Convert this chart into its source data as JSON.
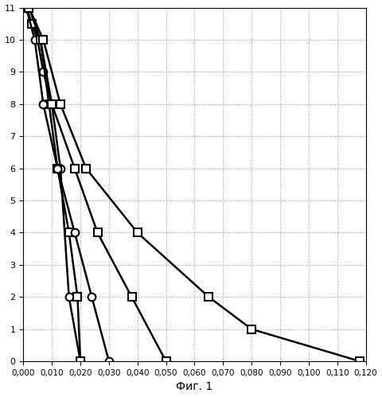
{
  "series": [
    {
      "marker": "o",
      "x": [
        0.001,
        0.003,
        0.005,
        0.007,
        0.01,
        0.013,
        0.016,
        0.02
      ],
      "y": [
        11,
        10.5,
        10,
        9,
        8,
        6,
        2,
        0
      ]
    },
    {
      "marker": "s",
      "x": [
        0.001,
        0.003,
        0.006,
        0.009,
        0.012,
        0.016,
        0.019,
        0.02
      ],
      "y": [
        11,
        10.5,
        10,
        8,
        6,
        4,
        2,
        0
      ]
    },
    {
      "marker": "o",
      "x": [
        0.001,
        0.004,
        0.007,
        0.012,
        0.018,
        0.024,
        0.03
      ],
      "y": [
        11,
        10,
        8,
        6,
        4,
        2,
        0
      ]
    },
    {
      "marker": "s",
      "x": [
        0.002,
        0.006,
        0.01,
        0.018,
        0.026,
        0.038,
        0.05
      ],
      "y": [
        11,
        10,
        8,
        6,
        4,
        2,
        0
      ]
    },
    {
      "marker": "s",
      "x": [
        0.002,
        0.007,
        0.013,
        0.022,
        0.04,
        0.065,
        0.08,
        0.118
      ],
      "y": [
        11,
        10,
        8,
        6,
        4,
        2,
        1,
        0
      ]
    }
  ],
  "xlabel": "Фиг. 1",
  "xlim": [
    0.0,
    0.12
  ],
  "ylim": [
    0,
    11
  ],
  "xticks": [
    0.0,
    0.01,
    0.02,
    0.03,
    0.04,
    0.05,
    0.06,
    0.07,
    0.08,
    0.09,
    0.1,
    0.11,
    0.12
  ],
  "yticks": [
    0,
    1,
    2,
    3,
    4,
    5,
    6,
    7,
    8,
    9,
    10,
    11
  ],
  "bg_color": "#ffffff",
  "line_color": "#000000",
  "grid_color": "#999999",
  "marker_size": 7,
  "linewidth": 1.8
}
